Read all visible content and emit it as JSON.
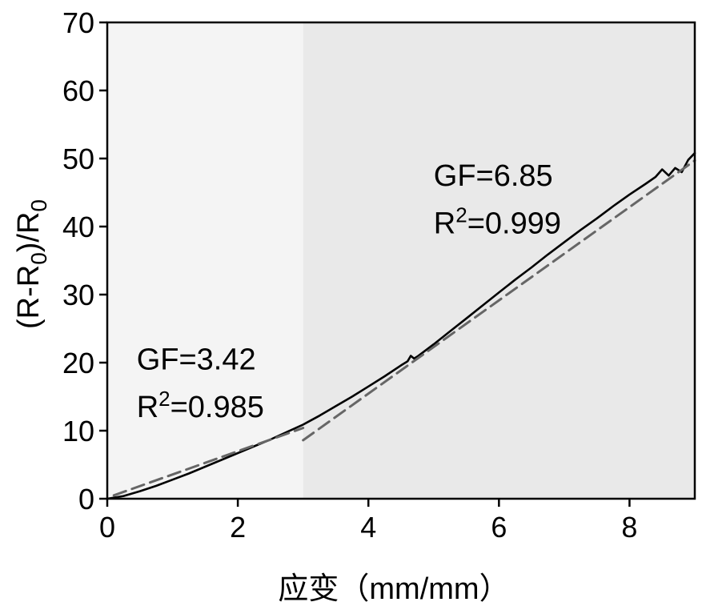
{
  "chart_data": {
    "type": "line",
    "title": "",
    "xlabel": "应变（mm/mm）",
    "ylabel": {
      "parts": [
        {
          "t": "(R-R",
          "sub": false
        },
        {
          "t": "0",
          "sub": true
        },
        {
          "t": ")/R",
          "sub": false
        },
        {
          "t": "0",
          "sub": true
        }
      ]
    },
    "xlim": [
      0,
      9
    ],
    "ylim": [
      0,
      70
    ],
    "xticks": [
      0,
      2,
      4,
      6,
      8
    ],
    "yticks": [
      0,
      10,
      20,
      30,
      40,
      50,
      60,
      70
    ],
    "regions": [
      {
        "x0": 0,
        "x1": 3,
        "color": "#f4f4f4"
      },
      {
        "x0": 3,
        "x1": 9,
        "color": "#e9e9e9"
      }
    ],
    "series": [
      {
        "style": "solid",
        "color": "#000000",
        "x": [
          0,
          0.25,
          0.5,
          0.75,
          1.0,
          1.25,
          1.5,
          1.75,
          2.0,
          2.25,
          2.5,
          2.75,
          3.0,
          3.25,
          3.5,
          3.75,
          4.0,
          4.25,
          4.5,
          4.6,
          4.65,
          4.7,
          4.75,
          5.0,
          5.25,
          5.5,
          5.75,
          6.0,
          6.25,
          6.5,
          6.75,
          7.0,
          7.25,
          7.5,
          7.75,
          8.0,
          8.25,
          8.4,
          8.5,
          8.6,
          8.7,
          8.8,
          8.9,
          9.0
        ],
        "y": [
          0,
          0.4,
          1.1,
          1.9,
          2.8,
          3.7,
          4.7,
          5.7,
          6.7,
          7.7,
          8.7,
          9.8,
          10.9,
          12.2,
          13.6,
          15.0,
          16.5,
          18.0,
          19.6,
          20.2,
          21.0,
          20.6,
          20.9,
          22.7,
          24.6,
          26.5,
          28.4,
          30.3,
          32.2,
          34.0,
          35.9,
          37.7,
          39.5,
          41.2,
          43.0,
          44.7,
          46.3,
          47.3,
          48.4,
          47.5,
          48.6,
          48.0,
          49.8,
          50.8
        ]
      },
      {
        "style": "dashed",
        "color": "#666666",
        "x": [
          0.1,
          3.0
        ],
        "y": [
          0.5,
          10.4
        ]
      },
      {
        "style": "dashed",
        "color": "#666666",
        "x": [
          3.0,
          9.0
        ],
        "y": [
          8.6,
          49.7
        ]
      }
    ],
    "annotations": [
      {
        "x": 0.45,
        "y_line1": 19.0,
        "y_line2": 12.0,
        "gf": "GF=3.42",
        "r2": "R²=0.985"
      },
      {
        "x": 5.0,
        "y_line1": 46.0,
        "y_line2": 39.0,
        "gf": "GF=6.85",
        "r2": "R²=0.999"
      }
    ]
  }
}
